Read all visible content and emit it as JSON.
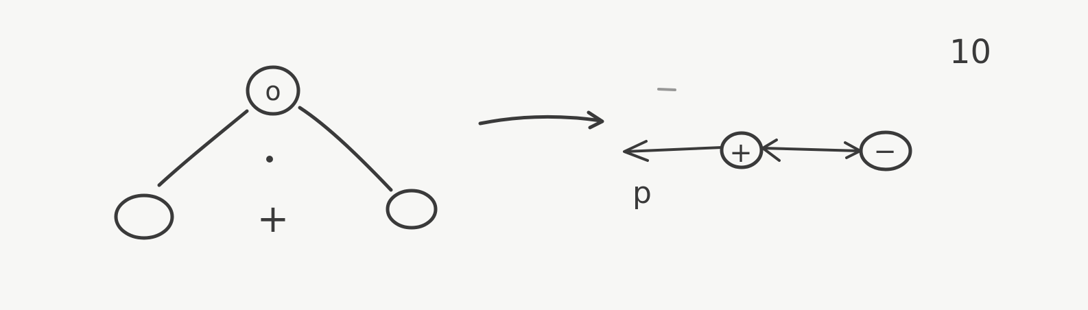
{
  "page_number": "10",
  "left_tree": {
    "root_label": "o",
    "center_sign": "+"
  },
  "right_chain": {
    "first_node_label": "+",
    "second_node_label": "−",
    "arrow_label": "p"
  }
}
